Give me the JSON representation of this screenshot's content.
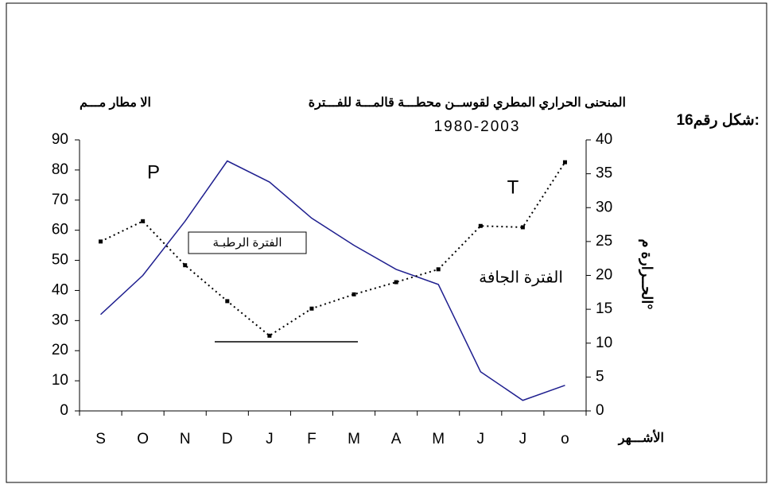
{
  "chart_data": {
    "type": "line",
    "figure_label": "شكل رقم16:",
    "title": "المنحنى الحراري المطري لقوســن  محطـــة قالمـــة للفـــترة",
    "subtitle": "1980-2003",
    "y_label": "الا مطار مـــم",
    "y2_label": "الحــرارة م°",
    "x_label": "الأشـــهر",
    "annotations": [
      "الفترة الرطبـة",
      "الفترة الجافة"
    ],
    "categories": [
      "S",
      "O",
      "N",
      "D",
      "J",
      "F",
      "M",
      "A",
      "M",
      "J",
      "J",
      "o"
    ],
    "series": [
      {
        "name": "P",
        "color": "#1f1f8f",
        "line_style": "solid",
        "values": [
          32,
          45,
          63,
          83,
          76,
          64,
          55,
          47,
          42,
          13,
          3.5,
          8.5
        ]
      },
      {
        "name": "T",
        "color": "#000000",
        "line_style": "dotted",
        "marker": "square",
        "axis": "y2",
        "values": [
          25,
          28,
          21.5,
          16.2,
          11.1,
          15.1,
          17.2,
          19,
          20.9,
          27.3,
          27.1,
          36.7
        ]
      }
    ],
    "ylim": [
      0,
      90
    ],
    "yticks": [
      0,
      10,
      20,
      30,
      40,
      50,
      60,
      70,
      80,
      90
    ],
    "y2lim": [
      0,
      40
    ],
    "y2ticks": [
      0,
      5,
      10,
      15,
      20,
      25,
      30,
      35,
      40
    ],
    "grid": false
  }
}
